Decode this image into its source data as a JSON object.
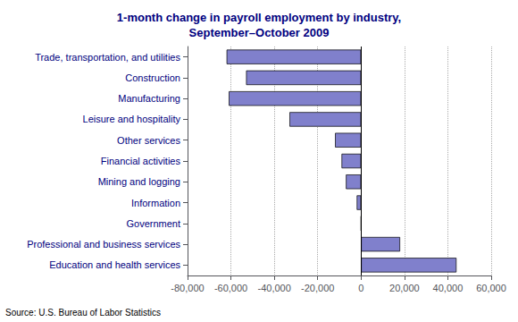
{
  "chart_data": {
    "type": "bar",
    "orientation": "horizontal",
    "title": "1-month change in payroll employment by industry,\nSeptember–October 2009",
    "annotation": "Source: U.S. Bureau of Labor Statistics",
    "categories": [
      "Trade, transportation, and utilities",
      "Construction",
      "Manufacturing",
      "Leisure and hospitality",
      "Other services",
      "Financial activities",
      "Mining and logging",
      "Information",
      "Government",
      "Professional and business services",
      "Education and health services"
    ],
    "values": [
      -62000,
      -53000,
      -61000,
      -33000,
      -12000,
      -9000,
      -7000,
      -2000,
      0,
      18000,
      44000
    ],
    "color": "#8080cc",
    "xlim": [
      -80000,
      60000
    ],
    "xticks": [
      {
        "value": -80000,
        "label": "-80,000"
      },
      {
        "value": -60000,
        "label": "-60,000"
      },
      {
        "value": -40000,
        "label": "-40,000"
      },
      {
        "value": -20000,
        "label": "-20,000"
      },
      0,
      {
        "value": 20000,
        "label": "20,000"
      },
      {
        "value": 40000,
        "label": "40,000"
      },
      {
        "value": 60000,
        "label": "60,000"
      }
    ],
    "grid": true
  }
}
